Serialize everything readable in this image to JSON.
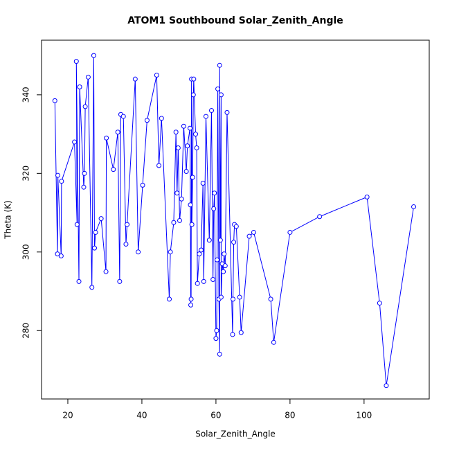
{
  "chart_data": {
    "type": "line",
    "title": "ATOM1 Southbound Solar_Zenith_Angle",
    "x_label": "Solar_Zenith_Angle",
    "y_label": "Theta (K)",
    "color": "#0000ff",
    "x": [
      16.5,
      17.2,
      17.3,
      18.2,
      18.3,
      21.8,
      22.5,
      22.3,
      23,
      23.2,
      24.3,
      24.5,
      24.7,
      25.5,
      26.5,
      27,
      27.2,
      27.5,
      29,
      30.3,
      30.4,
      32.3,
      33.5,
      34,
      34.3,
      35,
      35.7,
      36,
      38.2,
      39,
      40.2,
      41.4,
      44,
      44.6,
      45.3,
      47.4,
      47.7,
      48.6,
      49.2,
      49.5,
      49.8,
      50.2,
      50.7,
      51.3,
      52,
      52.3,
      53,
      53.1,
      53.2,
      53.3,
      53.4,
      53.5,
      53.7,
      53.9,
      54,
      54.5,
      54.8,
      55,
      55.5,
      56,
      56.5,
      56.7,
      57.3,
      58.2,
      58.8,
      59.2,
      59.4,
      59.6,
      60,
      60.2,
      60.3,
      60.5,
      60.8,
      61,
      61,
      61.2,
      61.4,
      61.4,
      61.7,
      62,
      62.2,
      62.5,
      63,
      64.5,
      64.6,
      64.8,
      65,
      65.5,
      66.4,
      66.8,
      69,
      70.2,
      74.8,
      75.6,
      80,
      88,
      100.8,
      104.2,
      106,
      113.4
    ],
    "values": [
      338.5,
      299.5,
      319.5,
      299,
      318,
      328,
      307,
      348.5,
      292.5,
      342,
      316.5,
      320,
      337,
      344.5,
      291,
      350,
      301,
      305,
      308.5,
      295,
      329,
      321,
      330.5,
      292.5,
      335,
      334.5,
      302,
      307,
      344,
      300,
      317,
      333.5,
      345,
      322,
      334,
      288,
      300,
      307.5,
      330.5,
      315,
      326.5,
      308,
      313.5,
      332,
      320.5,
      327,
      331.5,
      312,
      286.5,
      288,
      344,
      307,
      319,
      340,
      344,
      330,
      326.5,
      292,
      299.5,
      300.5,
      317.5,
      292.5,
      334.5,
      303,
      336,
      293,
      311,
      315,
      278,
      280,
      298,
      341.5,
      288,
      274,
      347.5,
      303,
      340,
      288.5,
      297,
      295,
      299.5,
      296.5,
      335.5,
      279,
      288,
      302.5,
      307,
      306.5,
      288.5,
      279.5,
      304,
      305,
      288,
      277,
      305,
      309,
      314,
      287,
      266,
      311.5
    ],
    "xlim": [
      12.9,
      117.6
    ],
    "ylim": [
      262.6,
      353.9
    ],
    "xticks": [
      20,
      40,
      60,
      80,
      100
    ],
    "yticks": [
      280,
      300,
      320,
      340
    ]
  }
}
